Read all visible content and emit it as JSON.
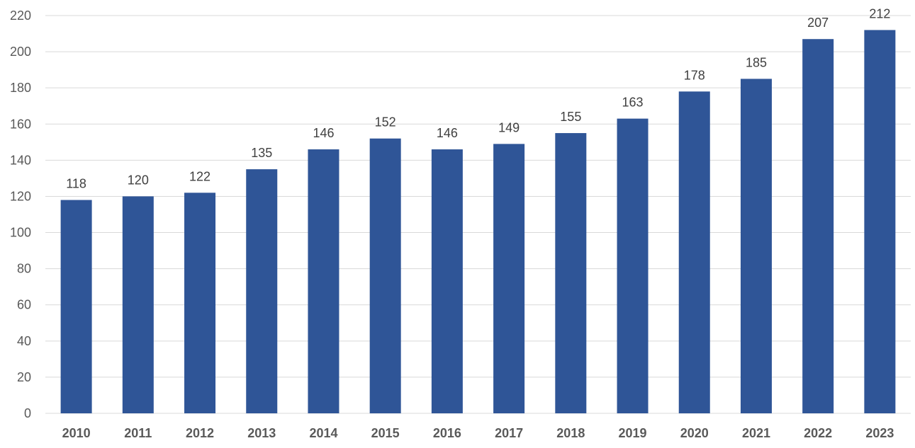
{
  "chart_data": {
    "type": "bar",
    "categories": [
      "2010",
      "2011",
      "2012",
      "2013",
      "2014",
      "2015",
      "2016",
      "2017",
      "2018",
      "2019",
      "2020",
      "2021",
      "2022",
      "2023"
    ],
    "values": [
      118,
      120,
      122,
      135,
      146,
      152,
      146,
      149,
      155,
      163,
      178,
      185,
      207,
      212
    ],
    "data_labels": [
      "118",
      "120",
      "122",
      "135",
      "146",
      "152",
      "146",
      "149",
      "155",
      "163",
      "178",
      "185",
      "207",
      "212"
    ],
    "y_ticks": [
      "0",
      "20",
      "40",
      "60",
      "80",
      "100",
      "120",
      "140",
      "160",
      "180",
      "200",
      "220"
    ],
    "ylim": [
      0,
      220
    ],
    "grid": true,
    "legend": "none",
    "bar_color": "#2f5597",
    "title": "",
    "xlabel": "",
    "ylabel": ""
  }
}
